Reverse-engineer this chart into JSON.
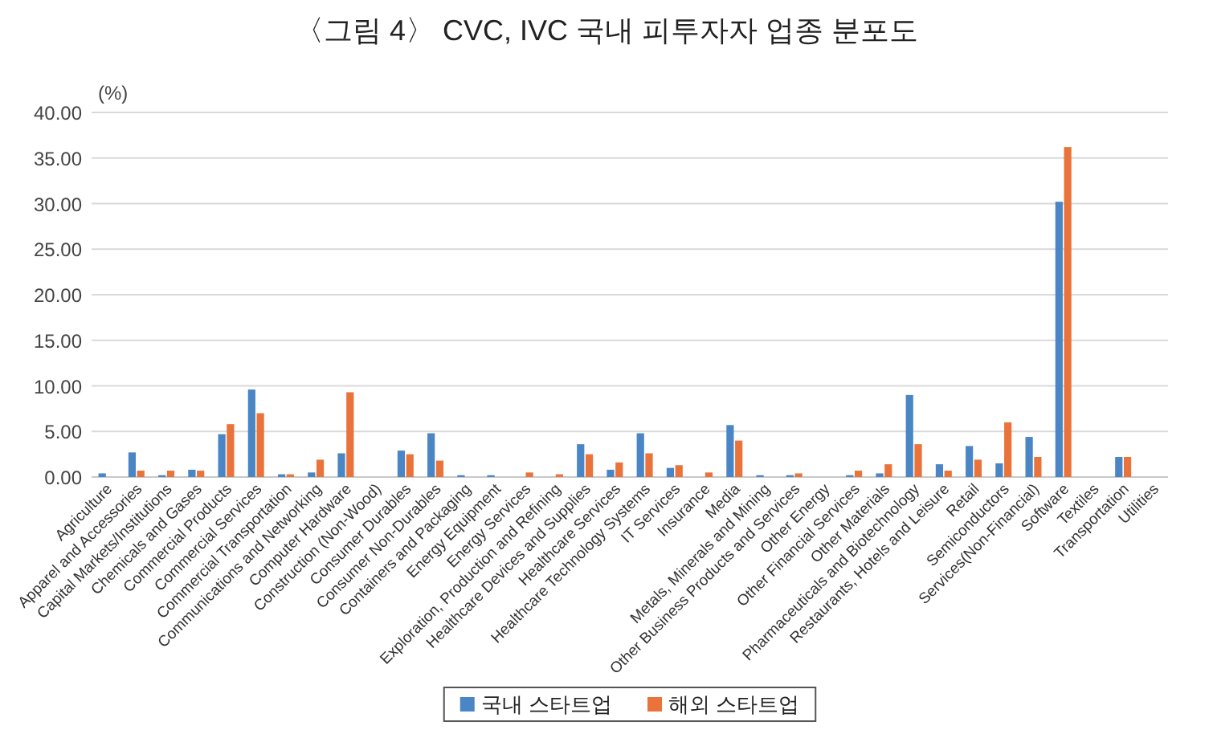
{
  "chart_data": {
    "type": "bar",
    "title": "〈그림 4〉 CVC, IVC 국내 피투자자 업종 분포도",
    "ylabel": "(%)",
    "categories": [
      "Agriculture",
      "Apparel and Accessories",
      "Capital Markets/Institutions",
      "Chemicals and Gases",
      "Commercial Products",
      "Commercial Services",
      "Commercial Transportation",
      "Communications and Networking",
      "Computer Hardware",
      "Construction (Non-Wood)",
      "Consumer Durables",
      "Consumer Non-Durables",
      "Containers and Packaging",
      "Energy Equipment",
      "Energy Services",
      "Exploration, Production and Refining",
      "Healthcare Devices and Supplies",
      "Healthcare Services",
      "Healthcare Technology Systems",
      "IT Services",
      "Insurance",
      "Media",
      "Metals, Minerals and Mining",
      "Other Business Products and Services",
      "Other Energy",
      "Other Financial Services",
      "Other Materials",
      "Pharmaceuticals and Biotechnology",
      "Restaurants, Hotels and Leisure",
      "Retail",
      "Semiconductors",
      "Services(Non-Financial)",
      "Software",
      "Textiles",
      "Transportation",
      "Utilities"
    ],
    "series": [
      {
        "name": "국내 스타트업",
        "color": "#4a86c5",
        "values": [
          0.4,
          2.7,
          0.2,
          0.8,
          4.7,
          9.6,
          0.3,
          0.5,
          2.6,
          0,
          2.9,
          4.8,
          0.2,
          0.2,
          0,
          0,
          3.6,
          0.8,
          4.8,
          1.0,
          0,
          5.7,
          0.2,
          0.2,
          0,
          0.2,
          0.4,
          9.0,
          1.4,
          3.4,
          1.5,
          4.4,
          30.2,
          0,
          2.2,
          0
        ]
      },
      {
        "name": "해외 스타트업",
        "color": "#e9733a",
        "values": [
          0,
          0.7,
          0.7,
          0.7,
          5.8,
          7.0,
          0.3,
          1.9,
          9.3,
          0,
          2.5,
          1.8,
          0,
          0,
          0.5,
          0.3,
          2.5,
          1.6,
          2.6,
          1.3,
          0.5,
          4.0,
          0,
          0.4,
          0,
          0.7,
          1.4,
          3.6,
          0.7,
          1.9,
          6.0,
          2.2,
          36.2,
          0,
          2.2,
          0
        ]
      }
    ],
    "ylim": [
      0,
      40
    ],
    "yticks": [
      {
        "value": 0,
        "label": "0.00"
      },
      {
        "value": 5,
        "label": "5.00"
      },
      {
        "value": 10,
        "label": "10.00"
      },
      {
        "value": 15,
        "label": "15.00"
      },
      {
        "value": 20,
        "label": "20.00"
      },
      {
        "value": 25,
        "label": "25.00"
      },
      {
        "value": 30,
        "label": "30.00"
      },
      {
        "value": 35,
        "label": "35.00"
      },
      {
        "value": 40,
        "label": "40.00"
      }
    ],
    "grid": "y",
    "legend": "bottom"
  }
}
